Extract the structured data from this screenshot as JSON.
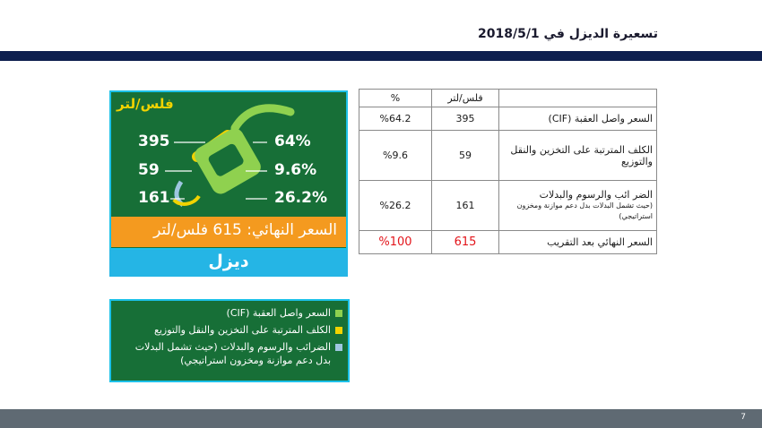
{
  "header": {
    "title": "تسعيرة الديزل  في 2018/5/1"
  },
  "card": {
    "unit": "فلس/لتر",
    "values": [
      "395",
      "59",
      "161"
    ],
    "percents": [
      "64%",
      "9.6%",
      "26.2%"
    ],
    "final_price": "السعر النهائي: 615 فلس/لتر",
    "fuel_name": "ديزل",
    "colors": {
      "green": "#176f37",
      "orange": "#f49a1f",
      "blue": "#25b5e5",
      "yellow": "#f2d300"
    }
  },
  "table": {
    "headers": [
      "",
      "فلس/لتر",
      "%"
    ],
    "rows": [
      {
        "label": "السعر  واصل العقبة (CIF)",
        "sub": "",
        "value": "395",
        "percent": "%64.2"
      },
      {
        "label": "الكلف المترتبة على التخزين والنقل والتوزيع",
        "sub": "",
        "value": "59",
        "percent": "%9.6"
      },
      {
        "label": "الضر ائب والرسوم والبدلات",
        "sub": "(حيث تشمل البدلات بدل دعم موازنة ومخزون استراتيجي)",
        "value": "161",
        "percent": "%26.2"
      },
      {
        "label": "السعر النهائي بعد التقريب",
        "sub": "",
        "value": "615",
        "percent": "%100"
      }
    ]
  },
  "legend": {
    "items": [
      {
        "label": "السعر واصل العقبة (CIF)",
        "color": "#8fd14f"
      },
      {
        "label": "الكلف المترتبة على التخزين والنقل والتوزيع",
        "color": "#f2d300"
      },
      {
        "label": "الضرائب والرسوم والبدلات (حيث تشمل البدلات بدل دعم موازنة ومخزون استراتيجي)",
        "color": "#9ec6e0"
      }
    ]
  },
  "footer": {
    "page_number": "7"
  }
}
